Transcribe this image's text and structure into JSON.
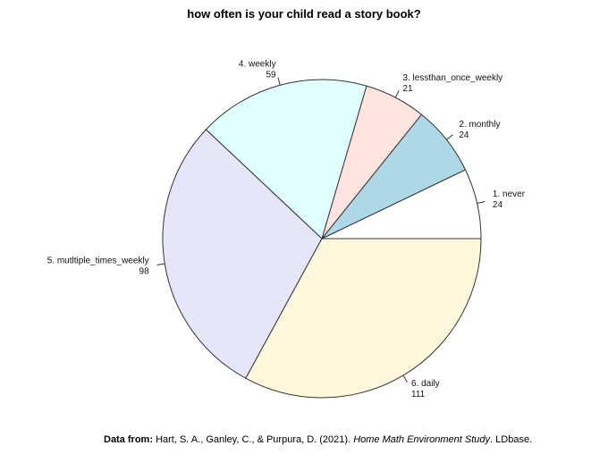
{
  "chart_data": {
    "type": "pie",
    "title": "how often is your child read a story book?",
    "direction": "counterclockwise",
    "start": "3 o'clock",
    "categories": [
      "1. never",
      "2. monthly",
      "3. lessthan_once_weekly",
      "4. weekly",
      "5. mutltiple_times_weekly",
      "6. daily"
    ],
    "values": [
      24,
      24,
      21,
      59,
      98,
      111
    ],
    "value_labels": [
      "24",
      "24",
      "21",
      "59",
      "98",
      "111"
    ],
    "colors": [
      "#ffffff",
      "#add8e6",
      "#ffe4e1",
      "#e0ffff",
      "#e6e6fa",
      "#fff8dc"
    ],
    "border_color": "#333333"
  },
  "footer": {
    "prefix": "Data from:",
    "citation_main": " Hart, S. A., Ganley, C., & Purpura, D. (2021). ",
    "citation_title": "Home Math Environment Study",
    "citation_end": ". LDbase."
  }
}
